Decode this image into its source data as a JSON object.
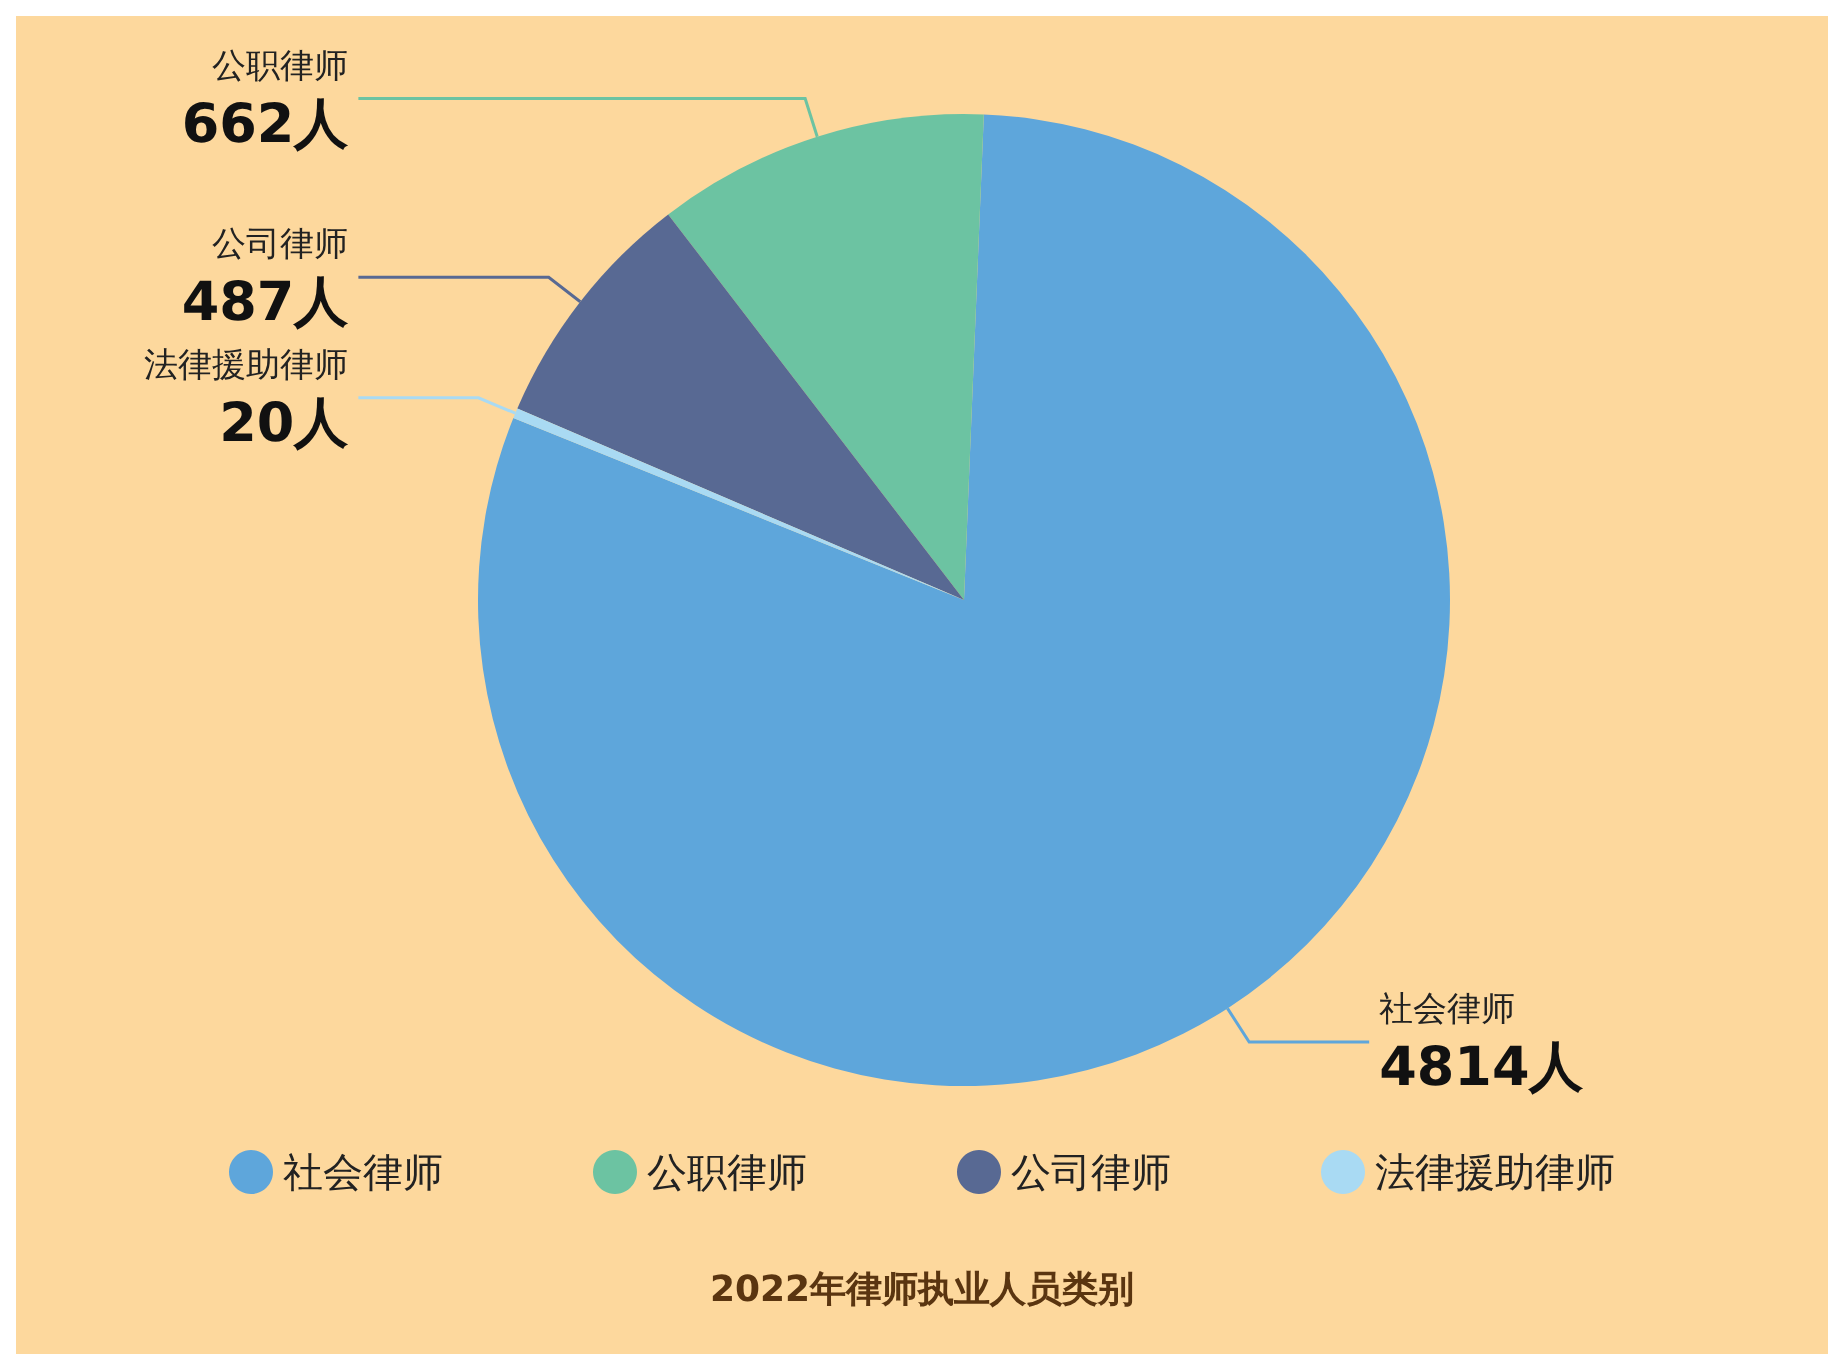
{
  "chart_data": {
    "type": "pie",
    "title": "2022年律师执业人员类别",
    "categories": [
      "社会律师",
      "公职律师",
      "公司律师",
      "法律援助律师"
    ],
    "values": [
      4814,
      662,
      487,
      20
    ],
    "colors": [
      "#5ea6db",
      "#6cc3a2",
      "#586993",
      "#a9daf3"
    ],
    "value_labels": [
      "4814人",
      "662人",
      "487人",
      "20人"
    ],
    "legend": "bottom"
  }
}
